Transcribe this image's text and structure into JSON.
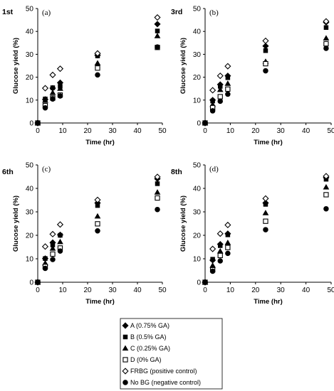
{
  "chart_data": [
    {
      "type": "scatter",
      "run_label": "1st",
      "panel_label": "(a)",
      "xlabel": "Time (hr)",
      "ylabel": "Glucose yield (%)",
      "xlim": [
        0,
        50
      ],
      "ylim": [
        0,
        50
      ],
      "xticks": [
        0,
        10,
        20,
        30,
        40,
        50
      ],
      "yticks": [
        0,
        10,
        20,
        30,
        40,
        50
      ],
      "series": [
        {
          "name": "A (0.75% GA)",
          "marker": "diamond-filled",
          "points": [
            [
              0,
              0
            ],
            [
              3,
              10.3
            ],
            [
              6,
              15.2
            ],
            [
              9,
              17.6
            ],
            [
              24,
              29.6
            ],
            [
              48,
              43.2
            ]
          ]
        },
        {
          "name": "B (0.5% GA)",
          "marker": "square-filled",
          "points": [
            [
              0,
              0
            ],
            [
              3,
              10.5
            ],
            [
              6,
              15.4
            ],
            [
              9,
              16.0
            ],
            [
              24,
              29.3
            ],
            [
              48,
              40.2
            ]
          ]
        },
        {
          "name": "C (0.25% GA)",
          "marker": "triangle-filled",
          "points": [
            [
              0,
              0
            ],
            [
              3,
              9.8
            ],
            [
              6,
              13.2
            ],
            [
              9,
              15.0
            ],
            [
              24,
              26.1
            ],
            [
              48,
              38.0
            ]
          ]
        },
        {
          "name": "D (0% GA)",
          "marker": "square-open",
          "points": [
            [
              0,
              0
            ],
            [
              3,
              7.6
            ],
            [
              6,
              10.9
            ],
            [
              9,
              12.2
            ],
            [
              24,
              24.0
            ],
            [
              48,
              33.0
            ]
          ]
        },
        {
          "name": "FRBG (positive control)",
          "marker": "diamond-open",
          "points": [
            [
              0,
              0
            ],
            [
              3,
              15.2
            ],
            [
              6,
              21.0
            ],
            [
              9,
              23.7
            ],
            [
              24,
              30.4
            ],
            [
              48,
              46.1
            ]
          ]
        },
        {
          "name": "No BG (negative control)",
          "marker": "circle-filled",
          "points": [
            [
              0,
              0
            ],
            [
              3,
              6.6
            ],
            [
              6,
              10.5
            ],
            [
              9,
              11.8
            ],
            [
              24,
              21.0
            ],
            [
              48,
              33.2
            ]
          ]
        }
      ]
    },
    {
      "type": "scatter",
      "run_label": "3rd",
      "panel_label": "(b)",
      "xlabel": "Time (hr)",
      "ylabel": "Glucose yield (%)",
      "xlim": [
        0,
        50
      ],
      "ylim": [
        0,
        50
      ],
      "xticks": [
        0,
        10,
        20,
        30,
        40,
        50
      ],
      "yticks": [
        0,
        10,
        20,
        30,
        40,
        50
      ],
      "series": [
        {
          "name": "A (0.75% GA)",
          "marker": "diamond-filled",
          "points": [
            [
              0,
              0
            ],
            [
              3,
              10.0
            ],
            [
              6,
              16.8
            ],
            [
              9,
              20.6
            ],
            [
              24,
              33.6
            ],
            [
              48,
              44.0
            ]
          ]
        },
        {
          "name": "B (0.5% GA)",
          "marker": "square-filled",
          "points": [
            [
              0,
              0
            ],
            [
              3,
              9.6
            ],
            [
              6,
              16.0
            ],
            [
              9,
              19.8
            ],
            [
              24,
              31.6
            ],
            [
              48,
              41.7
            ]
          ]
        },
        {
          "name": "C (0.25% GA)",
          "marker": "triangle-filled",
          "points": [
            [
              0,
              0
            ],
            [
              3,
              8.0
            ],
            [
              6,
              14.5
            ],
            [
              9,
              17.2
            ],
            [
              24,
              26.8
            ],
            [
              48,
              37.0
            ]
          ]
        },
        {
          "name": "D (0% GA)",
          "marker": "square-open",
          "points": [
            [
              0,
              0
            ],
            [
              3,
              6.7
            ],
            [
              6,
              11.5
            ],
            [
              9,
              14.8
            ],
            [
              24,
              25.9
            ],
            [
              48,
              34.6
            ]
          ]
        },
        {
          "name": "FRBG (positive control)",
          "marker": "diamond-open",
          "points": [
            [
              0,
              0
            ],
            [
              3,
              14.3
            ],
            [
              6,
              20.6
            ],
            [
              9,
              24.8
            ],
            [
              24,
              35.9
            ],
            [
              48,
              44.4
            ]
          ]
        },
        {
          "name": "No BG (negative control)",
          "marker": "circle-filled",
          "points": [
            [
              0,
              0
            ],
            [
              3,
              5.3
            ],
            [
              6,
              9.5
            ],
            [
              9,
              12.6
            ],
            [
              24,
              22.8
            ],
            [
              48,
              32.6
            ]
          ]
        }
      ]
    },
    {
      "type": "scatter",
      "run_label": "6th",
      "panel_label": "(c)",
      "xlabel": "Time (hr)",
      "ylabel": "Glucose yield (%)",
      "xlim": [
        0,
        50
      ],
      "ylim": [
        0,
        50
      ],
      "xticks": [
        0,
        10,
        20,
        30,
        40,
        50
      ],
      "yticks": [
        0,
        10,
        20,
        30,
        40,
        50
      ],
      "series": [
        {
          "name": "A (0.75% GA)",
          "marker": "diamond-filled",
          "points": [
            [
              0,
              0
            ],
            [
              3,
              10.1
            ],
            [
              6,
              16.9
            ],
            [
              9,
              20.2
            ],
            [
              24,
              33.8
            ],
            [
              48,
              44.1
            ]
          ]
        },
        {
          "name": "B (0.5% GA)",
          "marker": "square-filled",
          "points": [
            [
              0,
              0
            ],
            [
              3,
              10.1
            ],
            [
              6,
              15.9
            ],
            [
              9,
              20.0
            ],
            [
              24,
              32.7
            ],
            [
              48,
              42.0
            ]
          ]
        },
        {
          "name": "C (0.25% GA)",
          "marker": "triangle-filled",
          "points": [
            [
              0,
              0
            ],
            [
              3,
              8.1
            ],
            [
              6,
              14.4
            ],
            [
              9,
              17.2
            ],
            [
              24,
              28.1
            ],
            [
              48,
              38.3
            ]
          ]
        },
        {
          "name": "D (0% GA)",
          "marker": "square-open",
          "points": [
            [
              0,
              0
            ],
            [
              3,
              6.7
            ],
            [
              6,
              12.0
            ],
            [
              9,
              14.6
            ],
            [
              24,
              24.9
            ],
            [
              48,
              35.9
            ]
          ]
        },
        {
          "name": "FRBG (positive control)",
          "marker": "diamond-open",
          "points": [
            [
              0,
              0
            ],
            [
              3,
              15.2
            ],
            [
              6,
              20.5
            ],
            [
              9,
              24.6
            ],
            [
              24,
              35.1
            ],
            [
              48,
              44.9
            ]
          ]
        },
        {
          "name": "No BG (negative control)",
          "marker": "circle-filled",
          "points": [
            [
              0,
              0
            ],
            [
              3,
              5.9
            ],
            [
              6,
              9.7
            ],
            [
              9,
              13.3
            ],
            [
              24,
              21.9
            ],
            [
              48,
              31.0
            ]
          ]
        }
      ]
    },
    {
      "type": "scatter",
      "run_label": "8th",
      "panel_label": "(d)",
      "xlabel": "Time (hr)",
      "ylabel": "Glucose yield (%)",
      "xlim": [
        0,
        50
      ],
      "ylim": [
        0,
        50
      ],
      "xticks": [
        0,
        10,
        20,
        30,
        40,
        50
      ],
      "yticks": [
        0,
        10,
        20,
        30,
        40,
        50
      ],
      "series": [
        {
          "name": "A (0.75% GA)",
          "marker": "diamond-filled",
          "points": [
            [
              0,
              0
            ],
            [
              3,
              9.4
            ],
            [
              6,
              16.2
            ],
            [
              9,
              20.7
            ],
            [
              24,
              33.8
            ],
            [
              48,
              44.6
            ]
          ]
        },
        {
          "name": "B (0.5% GA)",
          "marker": "square-filled",
          "points": [
            [
              0,
              0
            ],
            [
              3,
              9.8
            ],
            [
              6,
              15.6
            ],
            [
              9,
              20.2
            ],
            [
              24,
              33.2
            ],
            [
              48,
              43.9
            ]
          ]
        },
        {
          "name": "C (0.25% GA)",
          "marker": "triangle-filled",
          "points": [
            [
              0,
              0
            ],
            [
              3,
              7.1
            ],
            [
              6,
              13.2
            ],
            [
              9,
              16.8
            ],
            [
              24,
              29.5
            ],
            [
              48,
              40.5
            ]
          ]
        },
        {
          "name": "D (0% GA)",
          "marker": "square-open",
          "points": [
            [
              0,
              0
            ],
            [
              3,
              5.3
            ],
            [
              6,
              11.4
            ],
            [
              9,
              14.8
            ],
            [
              24,
              26.0
            ],
            [
              48,
              37.3
            ]
          ]
        },
        {
          "name": "FRBG (positive control)",
          "marker": "diamond-open",
          "points": [
            [
              0,
              0
            ],
            [
              3,
              14.2
            ],
            [
              6,
              20.7
            ],
            [
              9,
              24.4
            ],
            [
              24,
              35.7
            ],
            [
              48,
              45.2
            ]
          ]
        },
        {
          "name": "No BG (negative control)",
          "marker": "circle-filled",
          "points": [
            [
              0,
              0
            ],
            [
              3,
              4.7
            ],
            [
              6,
              9.1
            ],
            [
              9,
              12.3
            ],
            [
              24,
              22.4
            ],
            [
              48,
              31.3
            ]
          ]
        }
      ]
    }
  ],
  "legend": {
    "placement": "bottom-center",
    "entries": [
      {
        "label": "A (0.75% GA)",
        "marker": "diamond-filled"
      },
      {
        "label": "B (0.5% GA)",
        "marker": "square-filled"
      },
      {
        "label": "C (0.25% GA)",
        "marker": "triangle-filled"
      },
      {
        "label": "D (0% GA)",
        "marker": "square-open"
      },
      {
        "label": "FRBG (positive control)",
        "marker": "diamond-open"
      },
      {
        "label": "No BG (negative control)",
        "marker": "circle-filled"
      }
    ]
  },
  "colors": {
    "marker": "#000000",
    "axis": "#000000",
    "background": "#ffffff"
  }
}
